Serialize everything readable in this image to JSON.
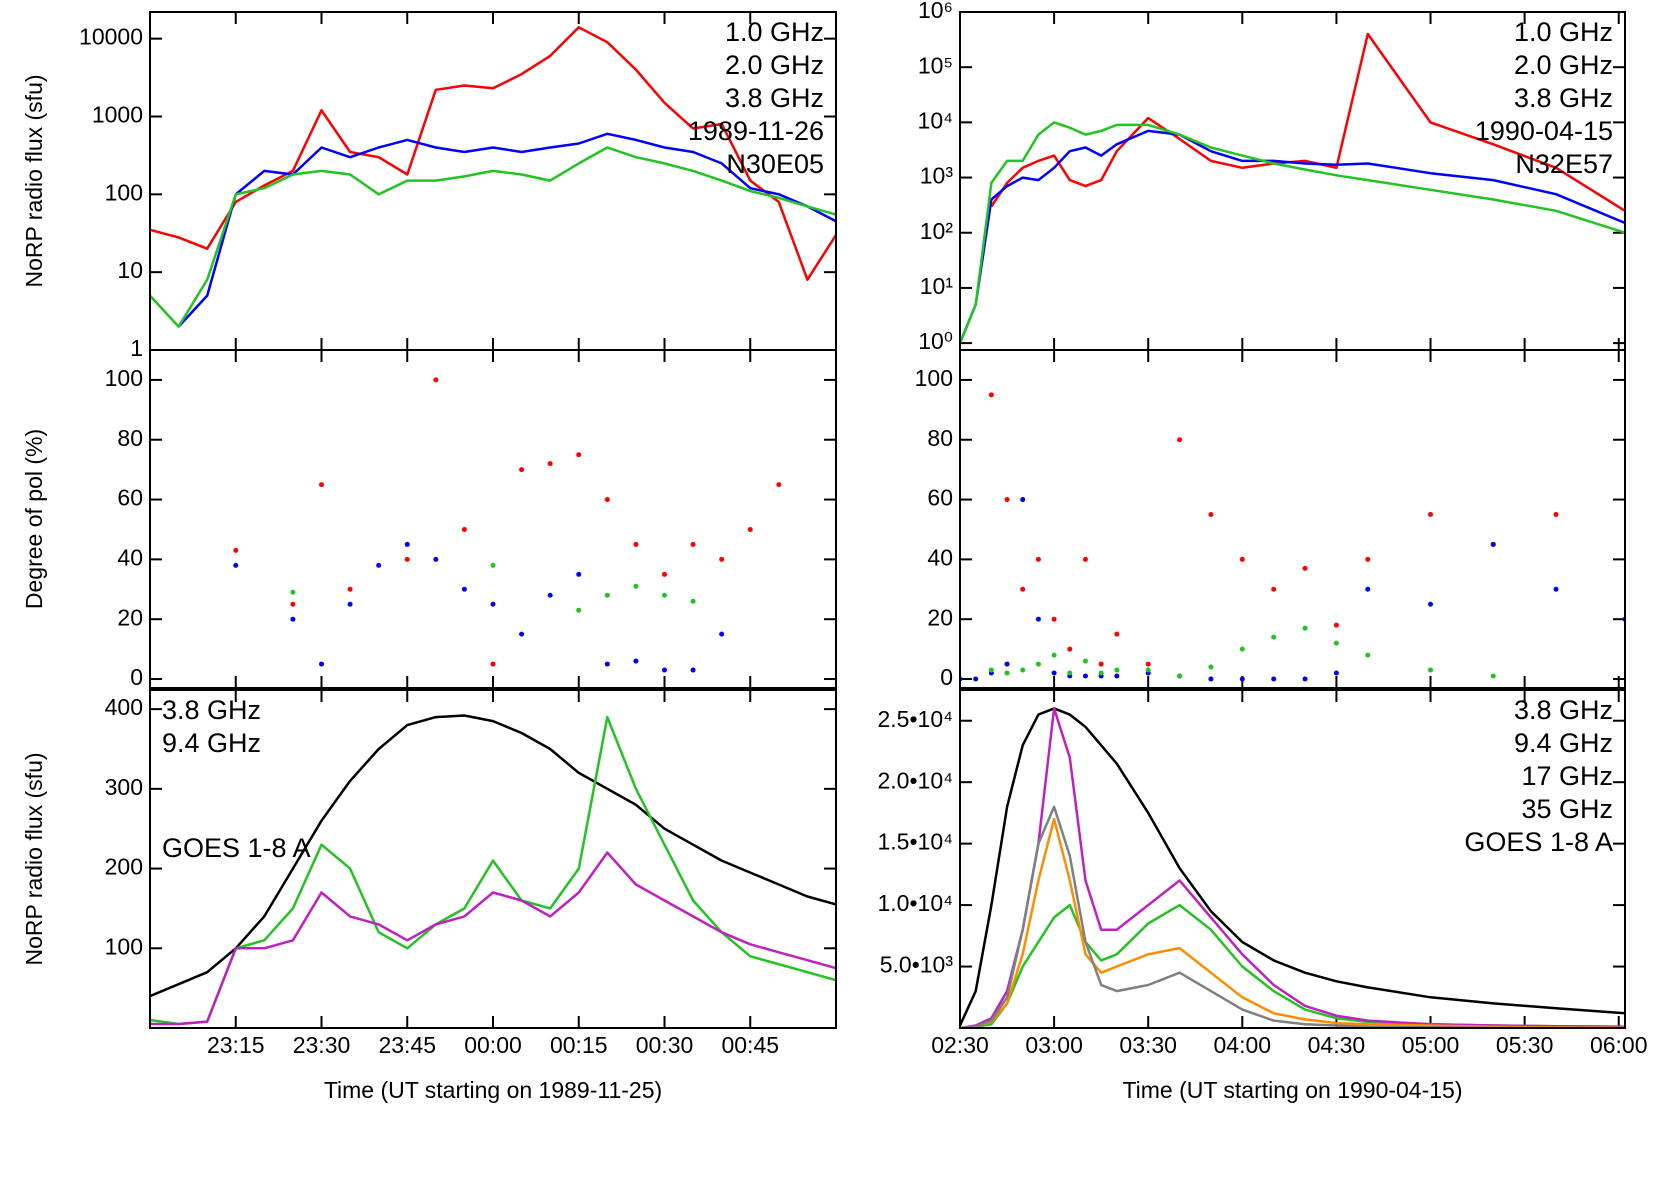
{
  "chart_data": [
    {
      "type": "line",
      "log_y": true,
      "legend": "upper right",
      "y_label": "NoRP radio flux (sfu)",
      "annotations": [
        "1989-11-26",
        "N30E05"
      ],
      "xlim": [
        0,
        120
      ],
      "xticks": [
        {
          "value": 15,
          "label": "23:15"
        },
        {
          "value": 30,
          "label": "23:30"
        },
        {
          "value": 45,
          "label": "23:45"
        },
        {
          "value": 60,
          "label": "00:00"
        },
        {
          "value": 75,
          "label": "00:15"
        },
        {
          "value": 90,
          "label": "00:30"
        },
        {
          "value": 105,
          "label": "00:45"
        }
      ],
      "ylim": [
        1,
        22000
      ],
      "yticks": [
        1,
        10,
        100,
        1000,
        10000
      ],
      "x": [
        0,
        5,
        10,
        15,
        20,
        25,
        30,
        35,
        40,
        45,
        50,
        55,
        60,
        65,
        70,
        75,
        80,
        85,
        90,
        95,
        100,
        105,
        110,
        115,
        120
      ],
      "series": [
        {
          "name": "1.0 GHz",
          "color": "#ff0000",
          "values": [
            35,
            28,
            20,
            80,
            130,
            200,
            1200,
            350,
            300,
            180,
            2200,
            2500,
            2300,
            3500,
            6000,
            14000,
            9000,
            4000,
            1500,
            700,
            800,
            150,
            80,
            8,
            30
          ]
        },
        {
          "name": "2.0 GHz",
          "color": "#0000ff",
          "values": [
            null,
            2,
            5,
            100,
            200,
            180,
            400,
            300,
            400,
            500,
            400,
            350,
            400,
            350,
            400,
            450,
            600,
            500,
            400,
            350,
            250,
            120,
            100,
            70,
            45
          ]
        },
        {
          "name": "3.8 GHz",
          "color": "#22c322",
          "values": [
            5,
            2,
            8,
            100,
            120,
            180,
            200,
            180,
            100,
            150,
            150,
            170,
            200,
            180,
            150,
            250,
            400,
            300,
            250,
            200,
            150,
            110,
            90,
            70,
            55
          ]
        }
      ]
    },
    {
      "type": "line",
      "log_y": true,
      "legend": "upper right",
      "annotations": [
        "1990-04-15",
        "N32E57"
      ],
      "xlim": [
        30,
        242
      ],
      "xticks": [
        {
          "value": 30,
          "label": "02:30"
        },
        {
          "value": 60,
          "label": "03:00"
        },
        {
          "value": 90,
          "label": "03:30"
        },
        {
          "value": 120,
          "label": "04:00"
        },
        {
          "value": 150,
          "label": "04:30"
        },
        {
          "value": 180,
          "label": "05:00"
        },
        {
          "value": 210,
          "label": "05:30"
        },
        {
          "value": 240,
          "label": "06:00"
        }
      ],
      "ylim": [
        0.75,
        1000000
      ],
      "yticks": [
        {
          "value": 1,
          "label": "10⁰"
        },
        {
          "value": 10,
          "label": "10¹"
        },
        {
          "value": 100,
          "label": "10²"
        },
        {
          "value": 1000,
          "label": "10³"
        },
        {
          "value": 10000,
          "label": "10⁴"
        },
        {
          "value": 100000,
          "label": "10⁵"
        },
        {
          "value": 1000000,
          "label": "10⁶"
        }
      ],
      "x": [
        30,
        35,
        40,
        45,
        50,
        55,
        60,
        65,
        70,
        75,
        80,
        90,
        100,
        110,
        120,
        130,
        140,
        150,
        160,
        180,
        200,
        220,
        242
      ],
      "series": [
        {
          "name": "1.0 GHz",
          "color": "#ff0000",
          "values": [
            null,
            null,
            300,
            800,
            1500,
            2000,
            2500,
            900,
            700,
            900,
            3000,
            12000,
            5000,
            2000,
            1500,
            1800,
            2000,
            1500,
            400000,
            10000,
            4000,
            1500,
            250
          ]
        },
        {
          "name": "2.0 GHz",
          "color": "#0000ff",
          "values": [
            1,
            5,
            400,
            700,
            1000,
            900,
            1500,
            3000,
            3500,
            2500,
            4000,
            7000,
            6000,
            3000,
            2000,
            2000,
            1800,
            1700,
            1800,
            1200,
            900,
            500,
            150
          ]
        },
        {
          "name": "3.8 GHz",
          "color": "#22c322",
          "values": [
            1,
            5,
            800,
            2000,
            2000,
            6000,
            10000,
            8000,
            6000,
            7000,
            9000,
            9000,
            6000,
            3500,
            2500,
            1800,
            1400,
            1100,
            900,
            600,
            400,
            250,
            100
          ]
        }
      ]
    },
    {
      "type": "scatter",
      "y_label": "Degree of pol (%)",
      "xlim": [
        0,
        120
      ],
      "xticks": [
        {
          "value": 15,
          "label": "23:15"
        },
        {
          "value": 30,
          "label": "23:30"
        },
        {
          "value": 45,
          "label": "23:45"
        },
        {
          "value": 60,
          "label": "00:00"
        },
        {
          "value": 75,
          "label": "00:15"
        },
        {
          "value": 90,
          "label": "00:30"
        },
        {
          "value": 105,
          "label": "00:45"
        }
      ],
      "ylim": [
        -3,
        110
      ],
      "yticks": [
        0,
        20,
        40,
        60,
        80,
        100
      ],
      "x": [
        0,
        5,
        10,
        15,
        20,
        25,
        30,
        35,
        40,
        45,
        50,
        55,
        60,
        65,
        70,
        75,
        80,
        85,
        90,
        95,
        100,
        105,
        110,
        115,
        120
      ],
      "series": [
        {
          "color": "#ff0000",
          "values": [
            null,
            null,
            null,
            43,
            null,
            25,
            65,
            30,
            null,
            40,
            100,
            50,
            5,
            70,
            72,
            75,
            60,
            45,
            35,
            45,
            40,
            50,
            65,
            null,
            null
          ]
        },
        {
          "color": "#0000ff",
          "values": [
            null,
            null,
            null,
            38,
            null,
            20,
            5,
            25,
            38,
            45,
            40,
            30,
            25,
            15,
            28,
            35,
            5,
            6,
            3,
            3,
            15,
            null,
            null,
            null,
            null
          ]
        },
        {
          "color": "#22c322",
          "values": [
            null,
            null,
            null,
            null,
            null,
            29,
            null,
            null,
            null,
            null,
            null,
            null,
            38,
            null,
            null,
            23,
            28,
            31,
            28,
            26,
            null,
            null,
            null,
            null,
            null
          ]
        }
      ]
    },
    {
      "type": "scatter",
      "xlim": [
        30,
        242
      ],
      "xticks": [
        {
          "value": 30,
          "label": "02:30"
        },
        {
          "value": 60,
          "label": "03:00"
        },
        {
          "value": 90,
          "label": "03:30"
        },
        {
          "value": 120,
          "label": "04:00"
        },
        {
          "value": 150,
          "label": "04:30"
        },
        {
          "value": 180,
          "label": "05:00"
        },
        {
          "value": 210,
          "label": "05:30"
        },
        {
          "value": 240,
          "label": "06:00"
        }
      ],
      "ylim": [
        -3,
        110
      ],
      "yticks": [
        0,
        20,
        40,
        60,
        80,
        100
      ],
      "x": [
        30,
        35,
        40,
        45,
        50,
        55,
        60,
        65,
        70,
        75,
        80,
        90,
        100,
        110,
        120,
        130,
        140,
        150,
        160,
        180,
        200,
        220,
        242
      ],
      "series": [
        {
          "color": "#ff0000",
          "values": [
            null,
            null,
            95,
            60,
            30,
            40,
            20,
            10,
            40,
            5,
            15,
            5,
            80,
            55,
            40,
            30,
            37,
            18,
            40,
            55,
            45,
            55,
            20
          ]
        },
        {
          "color": "#0000ff",
          "values": [
            0,
            0,
            2,
            5,
            60,
            20,
            2,
            1,
            1,
            1,
            1,
            2,
            1,
            0,
            0,
            0,
            0,
            2,
            30,
            25,
            45,
            30,
            20
          ]
        },
        {
          "color": "#22c322",
          "values": [
            null,
            null,
            3,
            2,
            3,
            5,
            8,
            2,
            6,
            2,
            3,
            3,
            1,
            4,
            10,
            14,
            17,
            12,
            8,
            3,
            1,
            null,
            null
          ]
        }
      ]
    },
    {
      "type": "line",
      "legend": "upper left",
      "y_label": "NoRP radio flux (sfu)",
      "x_label": "Time (UT starting on 1989-11-25)",
      "annotations": [
        "GOES 1-8 A"
      ],
      "xlim": [
        0,
        120
      ],
      "xticks": [
        {
          "value": 15,
          "label": "23:15"
        },
        {
          "value": 30,
          "label": "23:30"
        },
        {
          "value": 45,
          "label": "23:45"
        },
        {
          "value": 60,
          "label": "00:00"
        },
        {
          "value": 75,
          "label": "00:15"
        },
        {
          "value": 90,
          "label": "00:30"
        },
        {
          "value": 105,
          "label": "00:45"
        }
      ],
      "ylim": [
        0,
        424
      ],
      "yticks": [
        100,
        200,
        300,
        400
      ],
      "x": [
        0,
        5,
        10,
        15,
        20,
        25,
        30,
        35,
        40,
        45,
        50,
        55,
        60,
        65,
        70,
        75,
        80,
        85,
        90,
        95,
        100,
        105,
        110,
        115,
        120
      ],
      "series": [
        {
          "color": "#000000",
          "values": [
            40,
            55,
            70,
            100,
            140,
            200,
            260,
            310,
            350,
            380,
            390,
            392,
            385,
            370,
            350,
            320,
            300,
            280,
            250,
            230,
            210,
            195,
            180,
            165,
            155
          ]
        },
        {
          "name": "3.8 GHz",
          "color": "#22c322",
          "values": [
            10,
            5,
            8,
            100,
            110,
            150,
            230,
            200,
            120,
            100,
            130,
            150,
            210,
            160,
            150,
            200,
            390,
            300,
            230,
            160,
            120,
            90,
            80,
            70,
            60
          ]
        },
        {
          "name": "9.4 GHz",
          "color": "#c020c0",
          "values": [
            5,
            5,
            8,
            100,
            100,
            110,
            170,
            140,
            130,
            110,
            130,
            140,
            170,
            160,
            140,
            170,
            220,
            180,
            160,
            140,
            120,
            105,
            95,
            85,
            75
          ]
        }
      ]
    },
    {
      "type": "line",
      "legend": "upper right",
      "x_label": "Time (UT starting on 1990-04-15)",
      "annotations": [
        "GOES 1-8 A"
      ],
      "xlim": [
        30,
        242
      ],
      "xticks": [
        {
          "value": 30,
          "label": "02:30"
        },
        {
          "value": 60,
          "label": "03:00"
        },
        {
          "value": 90,
          "label": "03:30"
        },
        {
          "value": 120,
          "label": "04:00"
        },
        {
          "value": 150,
          "label": "04:30"
        },
        {
          "value": 180,
          "label": "05:00"
        },
        {
          "value": 210,
          "label": "05:30"
        },
        {
          "value": 240,
          "label": "06:00"
        }
      ],
      "ylim": [
        0,
        27500
      ],
      "yticks": [
        {
          "value": 5000,
          "label": "5.0•10³"
        },
        {
          "value": 10000,
          "label": "1.0•10⁴"
        },
        {
          "value": 15000,
          "label": "1.5•10⁴"
        },
        {
          "value": 20000,
          "label": "2.0•10⁴"
        },
        {
          "value": 25000,
          "label": "2.5•10⁴"
        }
      ],
      "x": [
        30,
        35,
        40,
        45,
        50,
        55,
        60,
        65,
        70,
        75,
        80,
        90,
        100,
        110,
        120,
        130,
        140,
        150,
        160,
        180,
        200,
        220,
        242
      ],
      "series": [
        {
          "color": "#000000",
          "values": [
            200,
            3000,
            10000,
            18000,
            23000,
            25500,
            26000,
            25500,
            24500,
            23000,
            21500,
            17500,
            13000,
            9500,
            7000,
            5500,
            4500,
            3800,
            3300,
            2500,
            2000,
            1600,
            1200
          ]
        },
        {
          "name": "3.8 GHz",
          "color": "#22c322",
          "values": [
            0,
            100,
            300,
            2000,
            5000,
            7000,
            9000,
            10000,
            7000,
            5500,
            6000,
            8500,
            10000,
            8000,
            5000,
            3000,
            1500,
            800,
            500,
            300,
            200,
            150,
            100
          ]
        },
        {
          "name": "9.4 GHz",
          "color": "#c020c0",
          "values": [
            0,
            200,
            800,
            3000,
            8000,
            15000,
            26000,
            22000,
            12000,
            8000,
            8000,
            10000,
            12000,
            9000,
            6000,
            3500,
            1800,
            1000,
            600,
            300,
            200,
            150,
            100
          ]
        },
        {
          "name": "17 GHz",
          "color": "#ff8c00",
          "values": [
            0,
            100,
            500,
            2000,
            6000,
            12000,
            17000,
            12000,
            6000,
            4500,
            5000,
            6000,
            6500,
            4500,
            2500,
            1200,
            700,
            400,
            300,
            200,
            100,
            50,
            30
          ]
        },
        {
          "name": "35 GHz",
          "color": "#808080",
          "values": [
            0,
            100,
            600,
            2500,
            8000,
            15000,
            18000,
            14000,
            7000,
            3500,
            3000,
            3500,
            4500,
            3000,
            1500,
            600,
            300,
            200,
            100,
            50,
            0,
            0,
            0
          ]
        }
      ]
    }
  ]
}
